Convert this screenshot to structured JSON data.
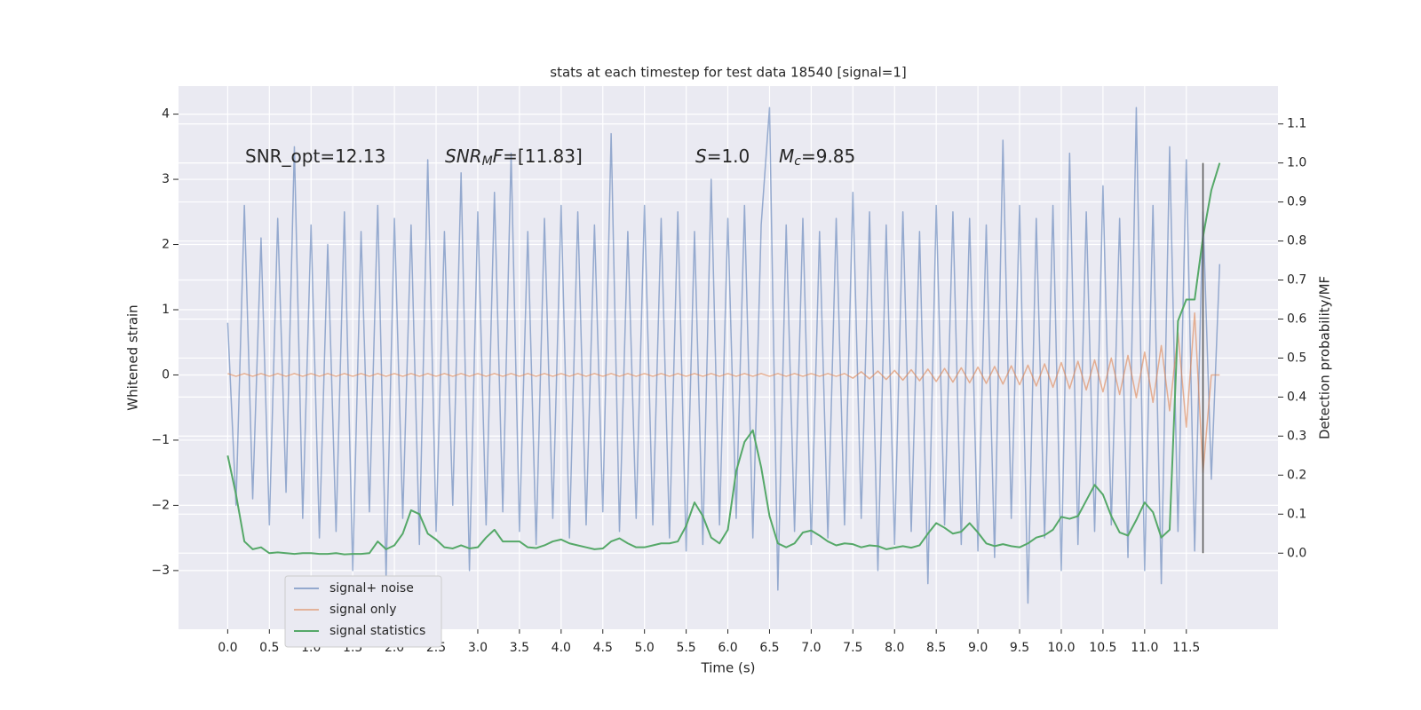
{
  "chart_data": {
    "type": "line",
    "title": "stats at each timestep for test data 18540 [signal=1]",
    "xlabel": "Time (s)",
    "ylabel": "Whitened strain",
    "y2label": "Detection probability/MF",
    "xlim": [
      -0.59,
      12.6
    ],
    "ylim": [
      -3.9,
      4.43
    ],
    "y2lim": [
      -0.195,
      1.197
    ],
    "xticks": [
      {
        "value": 0,
        "label": "0.0"
      },
      0.5,
      {
        "value": 1,
        "label": "1.0"
      },
      1.5,
      {
        "value": 2,
        "label": "2.0"
      },
      2.5,
      {
        "value": 3,
        "label": "3.0"
      },
      3.5,
      {
        "value": 4,
        "label": "4.0"
      },
      4.5,
      {
        "value": 5,
        "label": "5.0"
      },
      5.5,
      {
        "value": 6,
        "label": "6.0"
      },
      6.5,
      {
        "value": 7,
        "label": "7.0"
      },
      7.5,
      {
        "value": 8,
        "label": "8.0"
      },
      8.5,
      {
        "value": 9,
        "label": "9.0"
      },
      9.5,
      {
        "value": 10,
        "label": "10.0"
      },
      10.5,
      {
        "value": 11,
        "label": "11.0"
      },
      11.5
    ],
    "yticks": [
      {
        "value": -3,
        "label": "−3"
      },
      {
        "value": -2,
        "label": "−2"
      },
      {
        "value": -1,
        "label": "−1"
      },
      0,
      1,
      2,
      3,
      4
    ],
    "y2ticks": [
      {
        "value": 0,
        "label": "0.0"
      },
      0.1,
      0.2,
      0.3,
      0.4,
      0.5,
      0.6,
      0.7,
      0.8,
      0.9,
      {
        "value": 1,
        "label": "1.0"
      },
      1.1
    ],
    "grid": true,
    "legend_loc": "lower left",
    "x": [
      0.0,
      0.1,
      0.2,
      0.3,
      0.4,
      0.5,
      0.6,
      0.7,
      0.8,
      0.9,
      1.0,
      1.1,
      1.2,
      1.3,
      1.4,
      1.5,
      1.6,
      1.7,
      1.8,
      1.9,
      2.0,
      2.1,
      2.2,
      2.3,
      2.4,
      2.5,
      2.6,
      2.7,
      2.8,
      2.9,
      3.0,
      3.1,
      3.2,
      3.3,
      3.4,
      3.5,
      3.6,
      3.7,
      3.8,
      3.9,
      4.0,
      4.1,
      4.2,
      4.3,
      4.4,
      4.5,
      4.6,
      4.7,
      4.8,
      4.9,
      5.0,
      5.1,
      5.2,
      5.3,
      5.4,
      5.5,
      5.6,
      5.7,
      5.8,
      5.9,
      6.0,
      6.1,
      6.2,
      6.3,
      6.4,
      6.5,
      6.6,
      6.7,
      6.8,
      6.9,
      7.0,
      7.1,
      7.2,
      7.3,
      7.4,
      7.5,
      7.6,
      7.7,
      7.8,
      7.9,
      8.0,
      8.1,
      8.2,
      8.3,
      8.4,
      8.5,
      8.6,
      8.7,
      8.8,
      8.9,
      9.0,
      9.1,
      9.2,
      9.3,
      9.4,
      9.5,
      9.6,
      9.7,
      9.8,
      9.9,
      10.0,
      10.1,
      10.2,
      10.3,
      10.4,
      10.5,
      10.6,
      10.7,
      10.8,
      10.9,
      11.0,
      11.1,
      11.2,
      11.3,
      11.4,
      11.5,
      11.6,
      11.7,
      11.8,
      11.9
    ],
    "series": [
      {
        "name": "signal+ noise",
        "color": "#4c72b0",
        "values": [
          0.8,
          -2.0,
          2.6,
          -1.9,
          2.1,
          -2.3,
          2.4,
          -1.8,
          3.5,
          -2.2,
          2.3,
          -2.5,
          2.0,
          -2.4,
          2.5,
          -3.0,
          2.2,
          -2.1,
          2.6,
          -3.1,
          2.4,
          -2.2,
          2.3,
          -2.6,
          3.3,
          -2.4,
          2.2,
          -2.0,
          3.1,
          -3.0,
          2.5,
          -2.3,
          2.8,
          -2.1,
          3.4,
          -2.4,
          2.2,
          -2.6,
          2.4,
          -2.2,
          2.6,
          -2.5,
          2.5,
          -2.3,
          2.3,
          -2.1,
          3.7,
          -2.4,
          2.2,
          -2.2,
          2.6,
          -2.3,
          2.4,
          -2.5,
          2.5,
          -2.7,
          2.2,
          -2.6,
          3.0,
          -2.3,
          2.4,
          -2.2,
          2.6,
          -2.5,
          2.3,
          4.1,
          -3.3,
          2.3,
          -2.4,
          2.4,
          -2.6,
          2.2,
          -2.5,
          2.4,
          -2.3,
          2.8,
          -2.2,
          2.5,
          -3.0,
          2.3,
          -2.6,
          2.5,
          -2.4,
          2.2,
          -3.2,
          2.6,
          -2.3,
          2.5,
          -2.6,
          2.4,
          -2.7,
          2.3,
          -2.8,
          3.6,
          -2.2,
          2.6,
          -3.5,
          2.4,
          -2.5,
          2.6,
          -3.0,
          3.4,
          -2.6,
          2.5,
          -2.4,
          2.9,
          -2.3,
          2.4,
          -2.8,
          4.1,
          -3.0,
          2.6,
          -3.2,
          3.5,
          -2.4,
          3.3,
          -2.7,
          2.5,
          -1.6,
          1.7
        ]
      },
      {
        "name": "signal only",
        "color": "#dd8452",
        "values": [
          0.02,
          -0.02,
          0.02,
          -0.02,
          0.02,
          -0.02,
          0.02,
          -0.02,
          0.02,
          -0.02,
          0.02,
          -0.02,
          0.02,
          -0.02,
          0.02,
          -0.02,
          0.02,
          -0.02,
          0.02,
          -0.02,
          0.02,
          -0.02,
          0.02,
          -0.02,
          0.02,
          -0.02,
          0.02,
          -0.02,
          0.02,
          -0.02,
          0.02,
          -0.02,
          0.02,
          -0.02,
          0.02,
          -0.02,
          0.02,
          -0.02,
          0.02,
          -0.02,
          0.02,
          -0.02,
          0.02,
          -0.02,
          0.02,
          -0.02,
          0.02,
          -0.02,
          0.02,
          -0.02,
          0.02,
          -0.02,
          0.02,
          -0.02,
          0.02,
          -0.02,
          0.02,
          -0.02,
          0.02,
          -0.02,
          0.02,
          -0.02,
          0.02,
          -0.02,
          0.02,
          -0.02,
          0.02,
          -0.02,
          0.02,
          -0.02,
          0.02,
          -0.02,
          0.02,
          -0.02,
          0.02,
          -0.05,
          0.05,
          -0.06,
          0.06,
          -0.07,
          0.07,
          -0.08,
          0.08,
          -0.09,
          0.09,
          -0.1,
          0.1,
          -0.11,
          0.11,
          -0.12,
          0.12,
          -0.13,
          0.13,
          -0.14,
          0.14,
          -0.15,
          0.15,
          -0.17,
          0.17,
          -0.19,
          0.19,
          -0.21,
          0.21,
          -0.23,
          0.23,
          -0.26,
          0.26,
          -0.3,
          0.3,
          -0.35,
          0.35,
          -0.42,
          0.45,
          -0.55,
          0.65,
          -0.8,
          0.95,
          -1.5,
          0,
          0
        ]
      },
      {
        "name": "signal statistics",
        "color": "#55a868",
        "axis": "y2",
        "values": [
          0.25,
          0.15,
          0.03,
          0.01,
          0.015,
          0.0,
          0.002,
          0.0,
          -0.002,
          0.0,
          0.0,
          -0.002,
          -0.002,
          0.0,
          -0.003,
          -0.002,
          -0.002,
          0.0,
          0.03,
          0.01,
          0.02,
          0.05,
          0.11,
          0.1,
          0.05,
          0.035,
          0.015,
          0.012,
          0.02,
          0.012,
          0.015,
          0.04,
          0.06,
          0.03,
          0.03,
          0.03,
          0.015,
          0.013,
          0.02,
          0.03,
          0.035,
          0.025,
          0.02,
          0.015,
          0.01,
          0.012,
          0.03,
          0.038,
          0.025,
          0.015,
          0.015,
          0.02,
          0.025,
          0.025,
          0.03,
          0.07,
          0.13,
          0.095,
          0.04,
          0.025,
          0.06,
          0.21,
          0.285,
          0.315,
          0.22,
          0.095,
          0.025,
          0.015,
          0.025,
          0.053,
          0.058,
          0.045,
          0.03,
          0.02,
          0.025,
          0.023,
          0.015,
          0.02,
          0.018,
          0.01,
          0.014,
          0.018,
          0.014,
          0.02,
          0.05,
          0.077,
          0.065,
          0.05,
          0.055,
          0.077,
          0.053,
          0.025,
          0.018,
          0.023,
          0.018,
          0.015,
          0.025,
          0.04,
          0.046,
          0.06,
          0.093,
          0.088,
          0.095,
          0.135,
          0.175,
          0.15,
          0.095,
          0.053,
          0.045,
          0.085,
          0.13,
          0.105,
          0.04,
          0.06,
          0.595,
          0.65,
          0.65,
          0.81,
          0.93,
          1.0
        ]
      }
    ],
    "vline": {
      "x": 11.7,
      "ymin": 0,
      "ymax": 1,
      "axis": "y2",
      "color": "#555555"
    },
    "annotations": [
      [
        "SNR_opt=12.13"
      ],
      [
        "SNR",
        "M",
        "F",
        "=[11.83]"
      ],
      [
        "S",
        "=1.0"
      ],
      [
        "M",
        "c",
        "=9.85"
      ]
    ]
  }
}
